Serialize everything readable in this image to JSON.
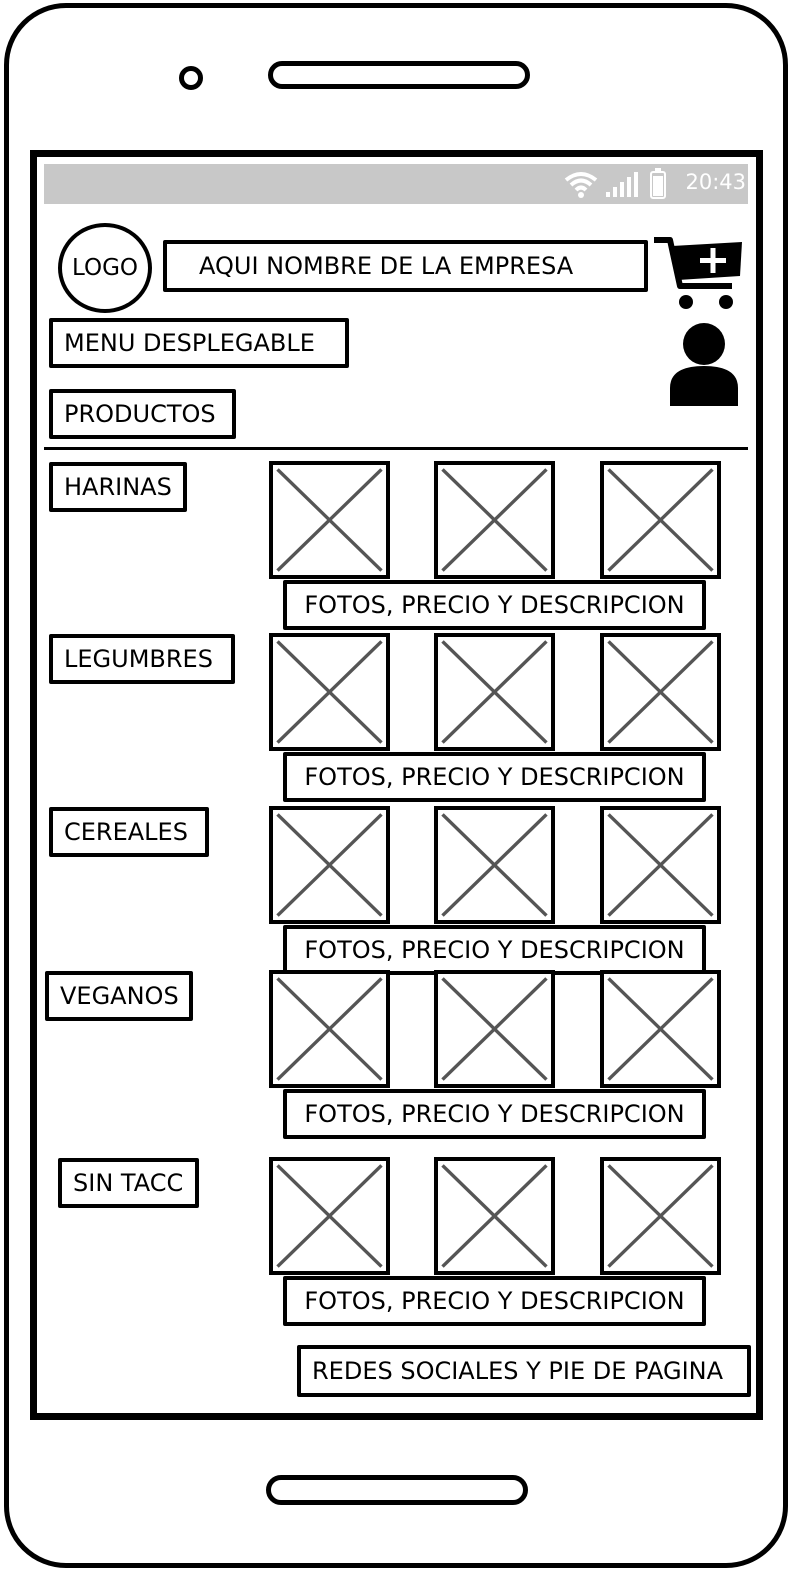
{
  "status_bar": {
    "time": "20:43",
    "wifi_icon": "wifi-icon",
    "signal_icon": "signal-icon",
    "battery_icon": "battery-icon"
  },
  "header": {
    "logo_label": "LOGO",
    "company_name": "AQUI NOMBRE DE LA EMPRESA",
    "cart_icon": "cart-add-icon",
    "user_icon": "user-icon"
  },
  "nav": {
    "menu_label": "MENU DESPLEGABLE",
    "products_label": "PRODUCTOS"
  },
  "categories": [
    {
      "label": "HARINAS",
      "caption": "FOTOS, PRECIO Y DESCRIPCION"
    },
    {
      "label": "LEGUMBRES",
      "caption": "FOTOS, PRECIO Y DESCRIPCION"
    },
    {
      "label": "CEREALES",
      "caption": "FOTOS, PRECIO Y DESCRIPCION"
    },
    {
      "label": "VEGANOS",
      "caption": "FOTOS, PRECIO Y DESCRIPCION"
    },
    {
      "label": "SIN TACC",
      "caption": "FOTOS, PRECIO Y DESCRIPCION"
    }
  ],
  "footer": {
    "label": "REDES SOCIALES Y PIE DE PAGINA"
  }
}
